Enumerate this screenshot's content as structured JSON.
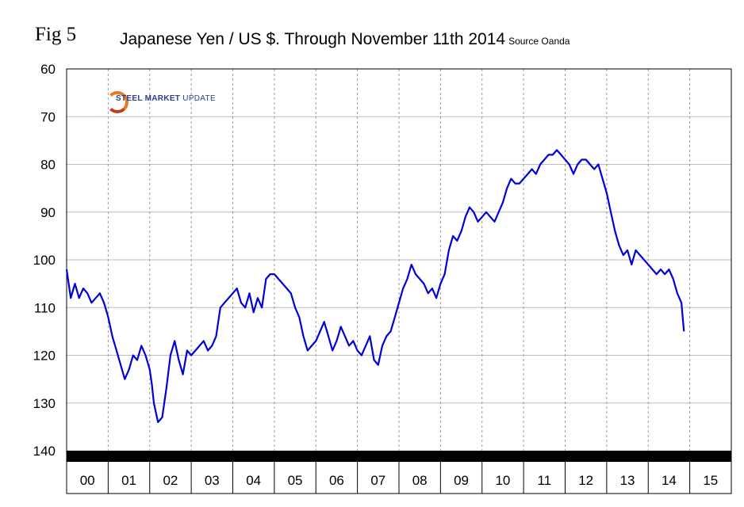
{
  "fig_label": "Fig 5",
  "title": "Japanese Yen / US $. Through November 11th 2014",
  "source": "Source Oanda",
  "logo": {
    "brand": "STEEL MARKET",
    "brand_suffix": "UPDATE"
  },
  "colors": {
    "line": "#0000dd",
    "grid": "#bdbdbd",
    "axis_band": "#000000"
  },
  "chart_data": {
    "type": "line",
    "title": "Japanese Yen / US $. Through November 11th 2014",
    "xlabel": "",
    "ylabel": "",
    "y_inverted": true,
    "ylim": [
      60,
      140
    ],
    "yticks": [
      60,
      70,
      80,
      90,
      100,
      110,
      120,
      130,
      140
    ],
    "xlim": [
      2000.0,
      2016.0
    ],
    "x_categories": [
      "00",
      "01",
      "02",
      "03",
      "04",
      "05",
      "06",
      "07",
      "08",
      "09",
      "10",
      "11",
      "12",
      "13",
      "14",
      "15"
    ],
    "grid": true,
    "series": [
      {
        "name": "",
        "x": [
          2000.0,
          2000.1,
          2000.2,
          2000.3,
          2000.4,
          2000.5,
          2000.6,
          2000.7,
          2000.8,
          2000.9,
          2001.0,
          2001.1,
          2001.2,
          2001.3,
          2001.4,
          2001.5,
          2001.6,
          2001.7,
          2001.8,
          2001.9,
          2002.0,
          2002.05,
          2002.1,
          2002.2,
          2002.3,
          2002.4,
          2002.5,
          2002.6,
          2002.7,
          2002.8,
          2002.9,
          2003.0,
          2003.1,
          2003.2,
          2003.3,
          2003.4,
          2003.5,
          2003.6,
          2003.7,
          2003.8,
          2003.9,
          2004.0,
          2004.1,
          2004.2,
          2004.3,
          2004.4,
          2004.5,
          2004.6,
          2004.7,
          2004.8,
          2004.9,
          2005.0,
          2005.1,
          2005.2,
          2005.3,
          2005.4,
          2005.5,
          2005.6,
          2005.7,
          2005.8,
          2005.9,
          2006.0,
          2006.1,
          2006.2,
          2006.3,
          2006.4,
          2006.5,
          2006.6,
          2006.7,
          2006.8,
          2006.9,
          2007.0,
          2007.1,
          2007.2,
          2007.3,
          2007.4,
          2007.5,
          2007.6,
          2007.7,
          2007.8,
          2007.9,
          2008.0,
          2008.1,
          2008.2,
          2008.3,
          2008.4,
          2008.5,
          2008.6,
          2008.7,
          2008.8,
          2008.9,
          2009.0,
          2009.1,
          2009.2,
          2009.3,
          2009.4,
          2009.5,
          2009.6,
          2009.7,
          2009.8,
          2009.9,
          2010.0,
          2010.1,
          2010.2,
          2010.3,
          2010.4,
          2010.5,
          2010.6,
          2010.7,
          2010.8,
          2010.9,
          2011.0,
          2011.1,
          2011.2,
          2011.3,
          2011.4,
          2011.5,
          2011.6,
          2011.7,
          2011.8,
          2011.9,
          2012.0,
          2012.1,
          2012.2,
          2012.3,
          2012.4,
          2012.5,
          2012.6,
          2012.7,
          2012.8,
          2012.9,
          2013.0,
          2013.1,
          2013.2,
          2013.3,
          2013.4,
          2013.5,
          2013.6,
          2013.7,
          2013.8,
          2013.9,
          2014.0,
          2014.1,
          2014.2,
          2014.3,
          2014.4,
          2014.5,
          2014.6,
          2014.7,
          2014.8,
          2014.86
        ],
        "values": [
          102,
          108,
          105,
          108,
          106,
          107,
          109,
          108,
          107,
          109,
          112,
          116,
          119,
          122,
          125,
          123,
          120,
          121,
          118,
          120,
          123,
          126,
          130,
          134,
          133,
          127,
          120,
          117,
          121,
          124,
          119,
          120,
          119,
          118,
          117,
          119,
          118,
          116,
          110,
          109,
          108,
          107,
          106,
          109,
          110,
          107,
          111,
          108,
          110,
          104,
          103,
          103,
          104,
          105,
          106,
          107,
          110,
          112,
          116,
          119,
          118,
          117,
          115,
          113,
          116,
          119,
          117,
          114,
          116,
          118,
          117,
          119,
          120,
          118,
          116,
          121,
          122,
          118,
          116,
          115,
          112,
          109,
          106,
          104,
          101,
          103,
          104,
          105,
          107,
          106,
          108,
          105,
          103,
          98,
          95,
          96,
          94,
          91,
          89,
          90,
          92,
          91,
          90,
          91,
          92,
          90,
          88,
          85,
          83,
          84,
          84,
          83,
          82,
          81,
          82,
          80,
          79,
          78,
          78,
          77,
          78,
          79,
          80,
          82,
          80,
          79,
          79,
          80,
          81,
          80,
          83,
          86,
          90,
          94,
          97,
          99,
          98,
          101,
          98,
          99,
          100,
          101,
          102,
          103,
          102,
          103,
          102,
          104,
          107,
          109,
          115
        ]
      }
    ]
  }
}
